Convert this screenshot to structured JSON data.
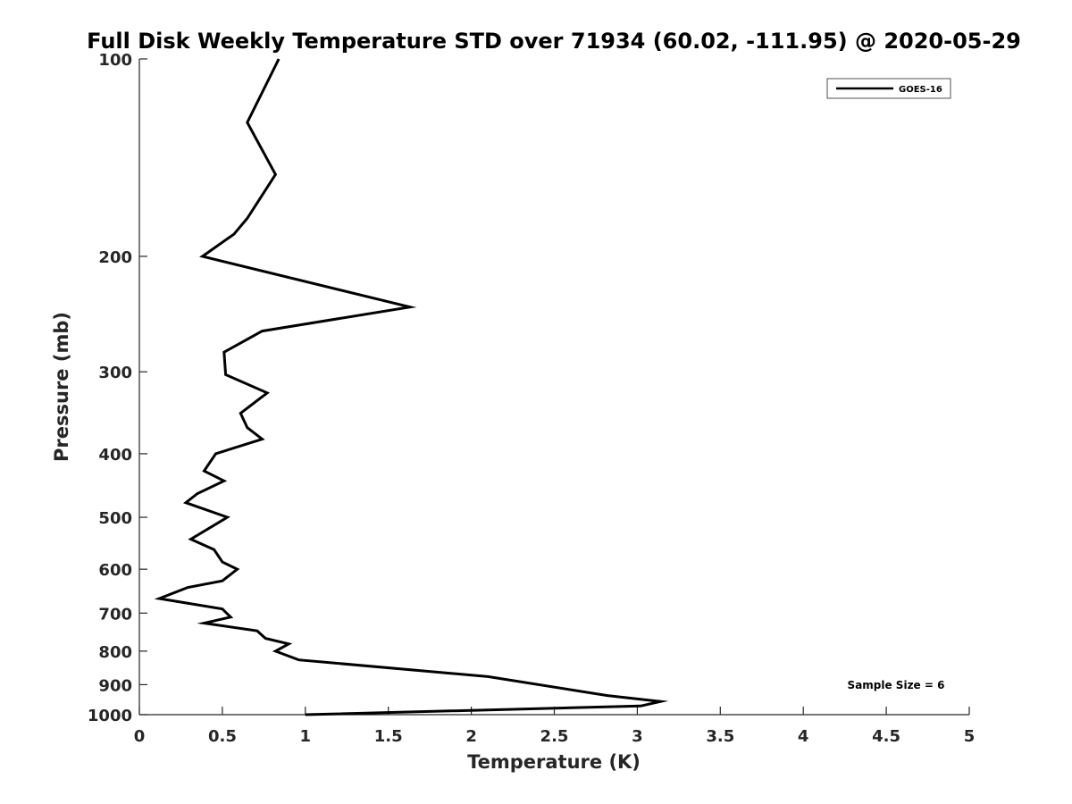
{
  "chart_data": {
    "type": "line",
    "title": "Full Disk Weekly Temperature STD over 71934 (60.02, -111.95) @ 2020-05-29",
    "xlabel": "Temperature (K)",
    "ylabel": "Pressure (mb)",
    "xlim": [
      0,
      5
    ],
    "ylim": [
      100,
      1000
    ],
    "y_scale": "log",
    "y_reversed": true,
    "grid": false,
    "x_ticks": [
      0,
      0.5,
      1,
      1.5,
      2,
      2.5,
      3,
      3.5,
      4,
      4.5,
      5
    ],
    "x_tick_labels": [
      "0",
      "0.5",
      "1",
      "1.5",
      "2",
      "2.5",
      "3",
      "3.5",
      "4",
      "4.5",
      "5"
    ],
    "y_ticks": [
      100,
      200,
      300,
      400,
      500,
      600,
      700,
      800,
      900,
      1000
    ],
    "y_tick_labels": [
      "100",
      "200",
      "300",
      "400",
      "500",
      "600",
      "700",
      "800",
      "900",
      "1000"
    ],
    "legend_position": "top-right",
    "series": [
      {
        "name": "GOES-16",
        "color": "#000000",
        "points": [
          {
            "x": 0.84,
            "y": 100
          },
          {
            "x": 0.65,
            "y": 125
          },
          {
            "x": 0.82,
            "y": 150
          },
          {
            "x": 0.65,
            "y": 175
          },
          {
            "x": 0.57,
            "y": 185
          },
          {
            "x": 0.38,
            "y": 200
          },
          {
            "x": 1.63,
            "y": 239
          },
          {
            "x": 0.74,
            "y": 260
          },
          {
            "x": 0.51,
            "y": 280
          },
          {
            "x": 0.52,
            "y": 303
          },
          {
            "x": 0.77,
            "y": 323
          },
          {
            "x": 0.61,
            "y": 347
          },
          {
            "x": 0.65,
            "y": 365
          },
          {
            "x": 0.74,
            "y": 380
          },
          {
            "x": 0.46,
            "y": 400
          },
          {
            "x": 0.39,
            "y": 425
          },
          {
            "x": 0.51,
            "y": 440
          },
          {
            "x": 0.35,
            "y": 460
          },
          {
            "x": 0.28,
            "y": 475
          },
          {
            "x": 0.53,
            "y": 500
          },
          {
            "x": 0.31,
            "y": 540
          },
          {
            "x": 0.45,
            "y": 560
          },
          {
            "x": 0.5,
            "y": 585
          },
          {
            "x": 0.59,
            "y": 600
          },
          {
            "x": 0.5,
            "y": 625
          },
          {
            "x": 0.29,
            "y": 640
          },
          {
            "x": 0.12,
            "y": 665
          },
          {
            "x": 0.5,
            "y": 690
          },
          {
            "x": 0.55,
            "y": 710
          },
          {
            "x": 0.39,
            "y": 725
          },
          {
            "x": 0.71,
            "y": 745
          },
          {
            "x": 0.76,
            "y": 765
          },
          {
            "x": 0.9,
            "y": 780
          },
          {
            "x": 0.82,
            "y": 800
          },
          {
            "x": 0.96,
            "y": 825
          },
          {
            "x": 2.1,
            "y": 875
          },
          {
            "x": 2.82,
            "y": 935
          },
          {
            "x": 3.14,
            "y": 955
          },
          {
            "x": 3.02,
            "y": 970
          },
          {
            "x": 1.0,
            "y": 1000
          }
        ]
      }
    ],
    "annotation": "Sample Size = 6"
  }
}
